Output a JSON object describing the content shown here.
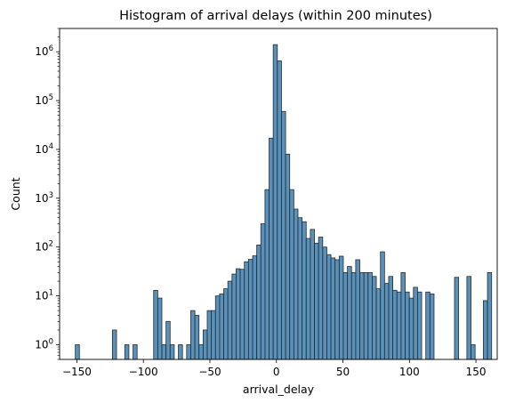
{
  "chart_data": {
    "type": "bar",
    "title": "Histogram of arrival delays (within 200 minutes)",
    "xlabel": "arrival_delay",
    "ylabel": "Count",
    "xscale": "linear",
    "yscale": "log",
    "xlim": [
      -163,
      166
    ],
    "ylim": [
      0.5,
      3000000
    ],
    "xticks": [
      -150,
      -100,
      -50,
      0,
      50,
      100,
      150
    ],
    "xtick_labels": [
      "−150",
      "−100",
      "−50",
      "0",
      "50",
      "100",
      "150"
    ],
    "yticks": [
      1,
      10,
      100,
      1000,
      10000,
      100000,
      1000000
    ],
    "ytick_labels": [
      "10^0",
      "10^1",
      "10^2",
      "10^3",
      "10^4",
      "10^5",
      "10^6"
    ],
    "grid": false,
    "bin_width": 3.1,
    "bar_color": "#3b7fb0",
    "bar_edge_color": "#2b2b2b",
    "bins_start": [
      -151.2,
      -123.3,
      -114.0,
      -107.8,
      -92.3,
      -89.2,
      -86.1,
      -83.0,
      -79.9,
      -73.7,
      -67.5,
      -64.4,
      -61.3,
      -58.2,
      -55.1,
      -52.0,
      -48.9,
      -45.8,
      -42.7,
      -39.6,
      -36.5,
      -33.4,
      -30.3,
      -27.2,
      -24.1,
      -21.0,
      -17.9,
      -14.8,
      -11.7,
      -8.6,
      -5.5,
      -2.4,
      0.7,
      3.8,
      6.9,
      10.0,
      13.1,
      16.2,
      19.3,
      22.4,
      25.5,
      28.6,
      31.7,
      34.8,
      37.9,
      41.0,
      44.1,
      47.2,
      50.3,
      53.4,
      56.5,
      59.6,
      62.7,
      65.8,
      68.9,
      72.0,
      75.1,
      78.2,
      81.3,
      84.4,
      87.5,
      90.6,
      93.7,
      96.8,
      99.9,
      103.0,
      106.1,
      112.3,
      115.4,
      133.9,
      143.2,
      146.3,
      155.6,
      158.7
    ],
    "counts": [
      1,
      2,
      1,
      1,
      13,
      9,
      1,
      3,
      1,
      1,
      1,
      5,
      4,
      1,
      2,
      5,
      5,
      10,
      11,
      14,
      20,
      28,
      36,
      35,
      50,
      56,
      66,
      110,
      300,
      1500,
      17000,
      1400000,
      650000,
      60000,
      8000,
      1500,
      600,
      400,
      330,
      150,
      230,
      120,
      160,
      100,
      70,
      60,
      55,
      65,
      30,
      40,
      30,
      55,
      30,
      30,
      30,
      25,
      14,
      80,
      18,
      25,
      13,
      12,
      30,
      12,
      9,
      15,
      12,
      12,
      11,
      24,
      25,
      1,
      8,
      30
    ]
  }
}
